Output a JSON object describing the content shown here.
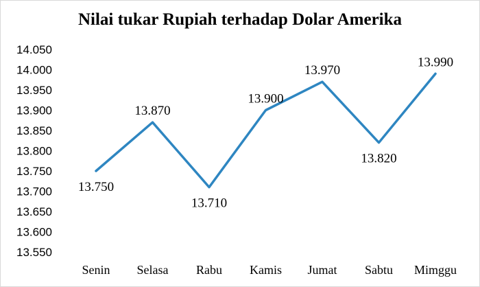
{
  "chart_data": {
    "type": "line",
    "title": "Nilai tukar Rupiah terhadap Dolar Amerika",
    "categories": [
      "Senin",
      "Selasa",
      "Rabu",
      "Kamis",
      "Jumat",
      "Sabtu",
      "Mimggu"
    ],
    "series": [
      {
        "values": [
          13750,
          13870,
          13710,
          13900,
          13970,
          13820,
          13990
        ],
        "labels": [
          "13.750",
          "13.870",
          "13.710",
          "13.900",
          "13.970",
          "13.820",
          "13.990"
        ],
        "color": "#2e86c1"
      }
    ],
    "y_ticks": [
      13550,
      13600,
      13650,
      13700,
      13750,
      13800,
      13850,
      13900,
      13950,
      14000,
      14050
    ],
    "y_tick_labels": [
      "13.550",
      "13.600",
      "13.650",
      "13.700",
      "13.750",
      "13.800",
      "13.850",
      "13.900",
      "13.950",
      "14.000",
      "14.050"
    ],
    "ylim": [
      13550,
      14050
    ],
    "grid": false,
    "legend": "none",
    "xlabel": "",
    "ylabel": ""
  }
}
